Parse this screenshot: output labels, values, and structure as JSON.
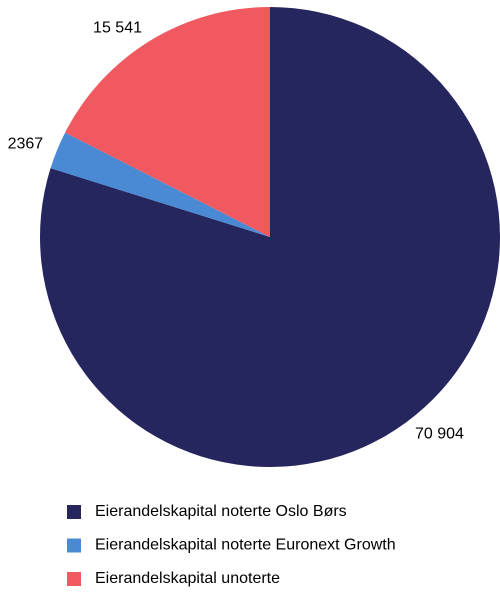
{
  "chart_data": {
    "type": "pie",
    "categories": [
      "Eierandelskapital noterte Oslo Børs",
      "Eierandelskapital noterte Euronext Growth",
      "Eierandelskapital unoterte"
    ],
    "values": [
      70904,
      2367,
      15541
    ],
    "value_labels": [
      "70 904",
      "2367",
      "15 541"
    ],
    "colors": [
      "#26265e",
      "#4a8ad4",
      "#f0595f"
    ]
  }
}
